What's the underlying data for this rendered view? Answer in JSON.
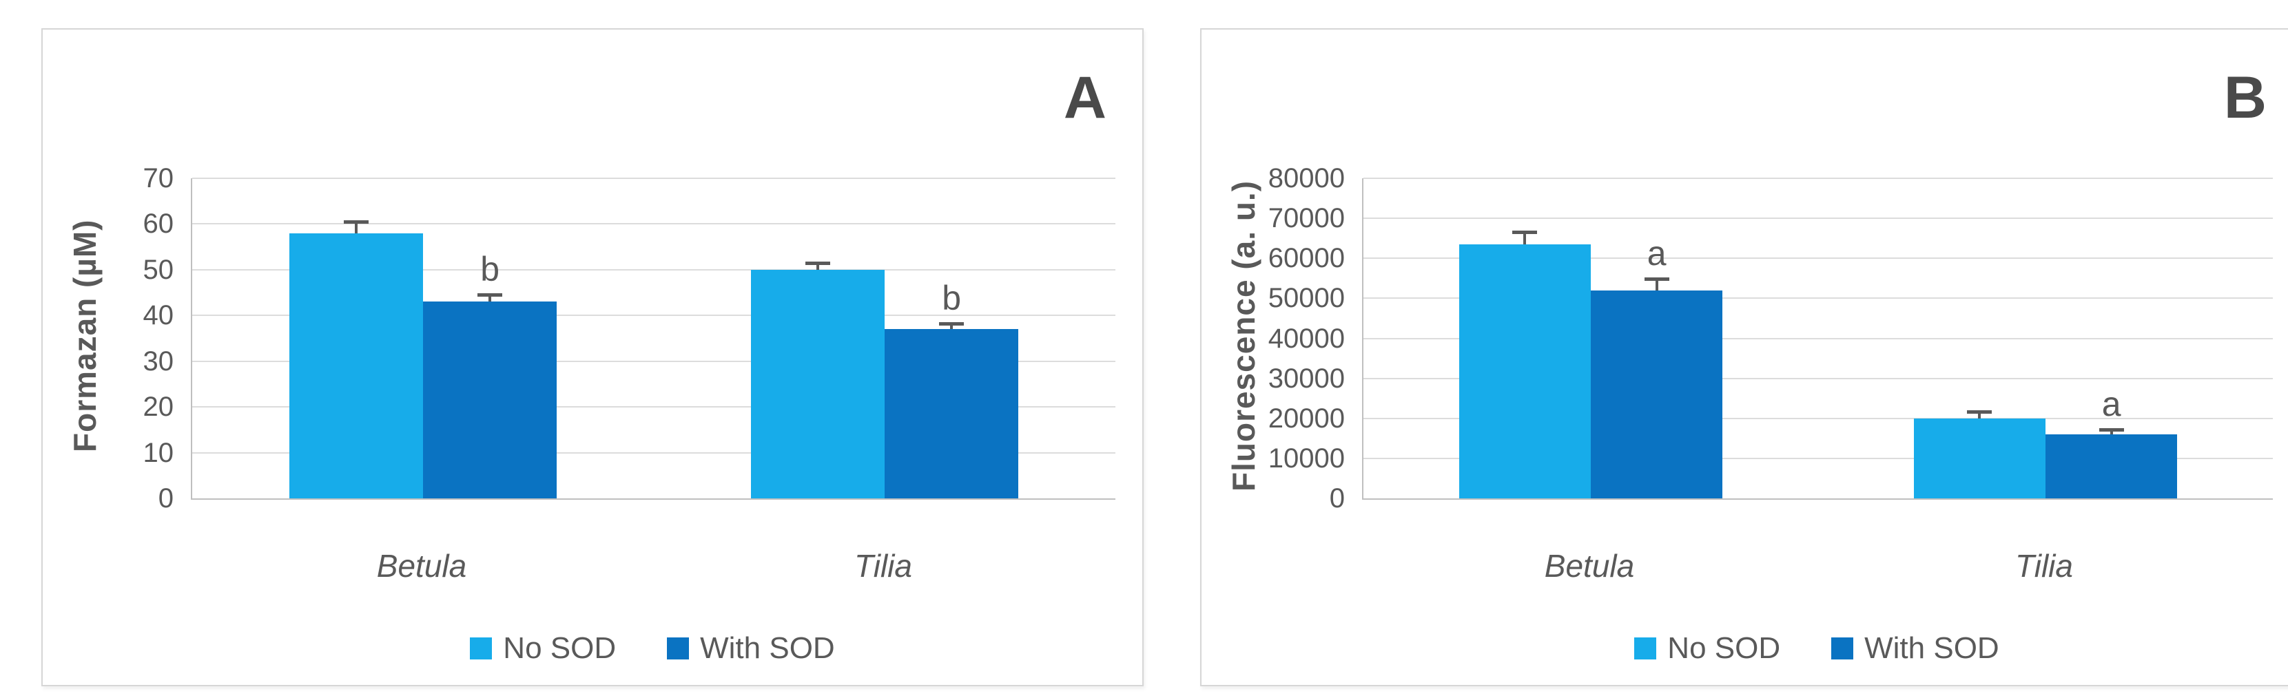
{
  "page": {
    "background": "#ffffff"
  },
  "styles": {
    "bar_light_blue": "#17ACEA",
    "bar_dark_blue": "#0A73C2",
    "axis_text_gray": "#595959",
    "gridline_gray": "#dcdcdc",
    "axis_line_gray": "#bfbfbf",
    "panel_letter_gray": "#4a4a4a",
    "panel_border_gray": "#d6d6d6"
  },
  "chart_data": [
    {
      "type": "bar",
      "panel_letter": "A",
      "ylabel": "Formazan (µM)",
      "xlabel": "",
      "ymax": 70,
      "ylim": [
        0,
        70
      ],
      "yticks": [
        0,
        10,
        20,
        30,
        40,
        50,
        60,
        70
      ],
      "grid": true,
      "legend_position": "bottom",
      "categories": [
        "Betula",
        "Tilia"
      ],
      "series": [
        {
          "name": "No SOD",
          "color": "#17ACEA",
          "values": [
            58,
            50
          ],
          "errors": [
            2.8,
            1.8
          ],
          "sig_labels": [
            "",
            ""
          ]
        },
        {
          "name": "With SOD",
          "color": "#0A73C2",
          "values": [
            43,
            37
          ],
          "errors": [
            1.8,
            1.5
          ],
          "sig_labels": [
            "b",
            "b"
          ]
        }
      ]
    },
    {
      "type": "bar",
      "panel_letter": "B",
      "ylabel": "Fluorescence (a. u.)",
      "xlabel": "",
      "ymax": 80000,
      "ylim": [
        0,
        80000
      ],
      "yticks": [
        0,
        10000,
        20000,
        30000,
        40000,
        50000,
        60000,
        70000,
        80000
      ],
      "grid": true,
      "legend_position": "bottom",
      "categories": [
        "Betula",
        "Tilia"
      ],
      "series": [
        {
          "name": "No SOD",
          "color": "#17ACEA",
          "values": [
            63500,
            20000
          ],
          "errors": [
            3400,
            2000
          ],
          "sig_labels": [
            "",
            ""
          ]
        },
        {
          "name": "With SOD",
          "color": "#0A73C2",
          "values": [
            52000,
            16000
          ],
          "errors": [
            3300,
            1600
          ],
          "sig_labels": [
            "a",
            "a"
          ]
        }
      ]
    }
  ]
}
